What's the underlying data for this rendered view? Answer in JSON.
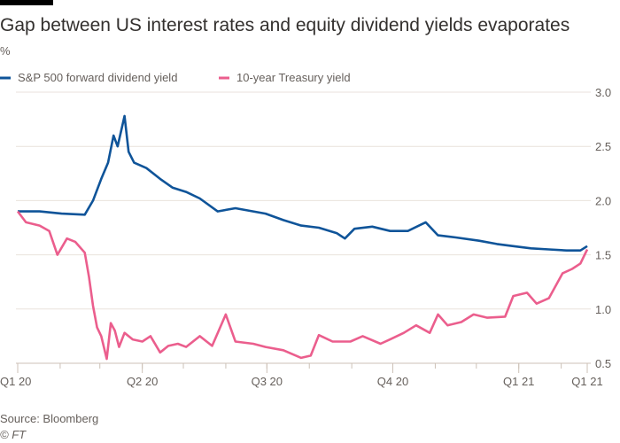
{
  "chart_data": {
    "type": "line",
    "title": "Gap between US interest rates and equity dividend yields evaporates",
    "ylabel": "%",
    "source": "Source: Bloomberg",
    "copyright": "© FT",
    "ylim": [
      0.5,
      3.0
    ],
    "xlim": [
      "2020-01-01",
      "2021-02-20"
    ],
    "yticks": [
      "0.5",
      "1.0",
      "1.5",
      "2.0",
      "2.5",
      "3.0"
    ],
    "xticks": [
      {
        "label": "Q1 20",
        "date": "2020-01-01"
      },
      {
        "label": "Q2 20",
        "date": "2020-04-01"
      },
      {
        "label": "Q3 20",
        "date": "2020-07-01"
      },
      {
        "label": "Q4 20",
        "date": "2020-10-01"
      },
      {
        "label": "Q1 21",
        "date": "2021-01-01"
      },
      {
        "label": "Q1 21",
        "date": "2021-02-20"
      }
    ],
    "grid": true,
    "legend_position": "top-left",
    "series": [
      {
        "name": "S&P 500 forward dividend yield",
        "color": "#0f5499",
        "points": [
          [
            "2020-01-01",
            1.9
          ],
          [
            "2020-01-17",
            1.9
          ],
          [
            "2020-02-02",
            1.88
          ],
          [
            "2020-02-19",
            1.87
          ],
          [
            "2020-02-25",
            2.0
          ],
          [
            "2020-03-02",
            2.2
          ],
          [
            "2020-03-07",
            2.35
          ],
          [
            "2020-03-11",
            2.6
          ],
          [
            "2020-03-14",
            2.5
          ],
          [
            "2020-03-19",
            2.78
          ],
          [
            "2020-03-22",
            2.45
          ],
          [
            "2020-03-26",
            2.35
          ],
          [
            "2020-04-04",
            2.3
          ],
          [
            "2020-04-14",
            2.2
          ],
          [
            "2020-04-23",
            2.12
          ],
          [
            "2020-05-03",
            2.08
          ],
          [
            "2020-05-13",
            2.02
          ],
          [
            "2020-05-26",
            1.9
          ],
          [
            "2020-06-08",
            1.93
          ],
          [
            "2020-06-21",
            1.9
          ],
          [
            "2020-06-30",
            1.88
          ],
          [
            "2020-07-13",
            1.82
          ],
          [
            "2020-07-26",
            1.77
          ],
          [
            "2020-08-08",
            1.75
          ],
          [
            "2020-08-21",
            1.7
          ],
          [
            "2020-08-27",
            1.65
          ],
          [
            "2020-09-03",
            1.74
          ],
          [
            "2020-09-16",
            1.76
          ],
          [
            "2020-09-29",
            1.72
          ],
          [
            "2020-10-12",
            1.72
          ],
          [
            "2020-10-25",
            1.8
          ],
          [
            "2020-11-03",
            1.68
          ],
          [
            "2020-11-16",
            1.66
          ],
          [
            "2020-12-03",
            1.63
          ],
          [
            "2020-12-16",
            1.6
          ],
          [
            "2020-12-28",
            1.58
          ],
          [
            "2021-01-10",
            1.56
          ],
          [
            "2021-01-23",
            1.55
          ],
          [
            "2021-02-05",
            1.54
          ],
          [
            "2021-02-15",
            1.54
          ],
          [
            "2021-02-20",
            1.58
          ]
        ]
      },
      {
        "name": "10-year Treasury yield",
        "color": "#eb5e8d",
        "points": [
          [
            "2020-01-01",
            1.9
          ],
          [
            "2020-01-07",
            1.8
          ],
          [
            "2020-01-17",
            1.77
          ],
          [
            "2020-01-24",
            1.72
          ],
          [
            "2020-01-30",
            1.5
          ],
          [
            "2020-02-06",
            1.65
          ],
          [
            "2020-02-12",
            1.62
          ],
          [
            "2020-02-19",
            1.52
          ],
          [
            "2020-02-22",
            1.3
          ],
          [
            "2020-02-25",
            1.03
          ],
          [
            "2020-02-28",
            0.83
          ],
          [
            "2020-03-02",
            0.75
          ],
          [
            "2020-03-06",
            0.54
          ],
          [
            "2020-03-09",
            0.87
          ],
          [
            "2020-03-12",
            0.8
          ],
          [
            "2020-03-15",
            0.65
          ],
          [
            "2020-03-19",
            0.78
          ],
          [
            "2020-03-25",
            0.72
          ],
          [
            "2020-04-01",
            0.7
          ],
          [
            "2020-04-07",
            0.75
          ],
          [
            "2020-04-14",
            0.6
          ],
          [
            "2020-04-20",
            0.66
          ],
          [
            "2020-04-27",
            0.68
          ],
          [
            "2020-05-03",
            0.65
          ],
          [
            "2020-05-13",
            0.75
          ],
          [
            "2020-05-22",
            0.66
          ],
          [
            "2020-06-01",
            0.95
          ],
          [
            "2020-06-08",
            0.7
          ],
          [
            "2020-06-21",
            0.68
          ],
          [
            "2020-06-30",
            0.65
          ],
          [
            "2020-07-13",
            0.62
          ],
          [
            "2020-07-26",
            0.55
          ],
          [
            "2020-08-02",
            0.57
          ],
          [
            "2020-08-08",
            0.76
          ],
          [
            "2020-08-18",
            0.7
          ],
          [
            "2020-08-31",
            0.7
          ],
          [
            "2020-09-09",
            0.75
          ],
          [
            "2020-09-22",
            0.68
          ],
          [
            "2020-09-29",
            0.72
          ],
          [
            "2020-10-09",
            0.78
          ],
          [
            "2020-10-18",
            0.85
          ],
          [
            "2020-10-28",
            0.78
          ],
          [
            "2020-11-03",
            0.95
          ],
          [
            "2020-11-10",
            0.85
          ],
          [
            "2020-11-20",
            0.88
          ],
          [
            "2020-11-29",
            0.95
          ],
          [
            "2020-12-09",
            0.92
          ],
          [
            "2020-12-22",
            0.93
          ],
          [
            "2020-12-28",
            1.12
          ],
          [
            "2021-01-07",
            1.15
          ],
          [
            "2021-01-14",
            1.05
          ],
          [
            "2021-01-23",
            1.1
          ],
          [
            "2021-02-02",
            1.33
          ],
          [
            "2021-02-09",
            1.37
          ],
          [
            "2021-02-15",
            1.42
          ],
          [
            "2021-02-20",
            1.55
          ]
        ]
      }
    ]
  }
}
